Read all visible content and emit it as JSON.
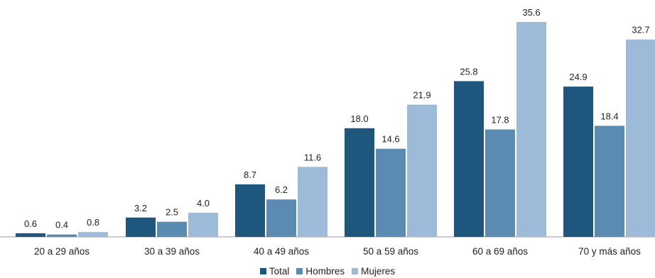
{
  "colors": {
    "total": "#1f567e",
    "hombres": "#5b8bb0",
    "mujeres": "#9dbbd8"
  },
  "chart_data": {
    "type": "bar",
    "title": "",
    "xlabel": "",
    "ylabel": "",
    "ylim": [
      0,
      35.6
    ],
    "grid": false,
    "legend_position": "bottom",
    "categories": [
      "20 a 29 años",
      "30 a 39 años",
      "40 a 49 años",
      "50 a 59 años",
      "60 a 69 años",
      "70 y más años"
    ],
    "series": [
      {
        "name": "Total",
        "values": [
          0.6,
          3.2,
          8.7,
          18.0,
          25.8,
          24.9
        ],
        "labels": [
          "0.6",
          "3.2",
          "8.7",
          "18.0",
          "25.8",
          "24.9"
        ]
      },
      {
        "name": "Hombres",
        "values": [
          0.4,
          2.5,
          6.2,
          14.6,
          17.8,
          18.4
        ],
        "labels": [
          "0.4",
          "2.5",
          "6.2",
          "14.6",
          "17.8",
          "18.4"
        ]
      },
      {
        "name": "Mujeres",
        "values": [
          0.8,
          4.0,
          11.6,
          21.9,
          35.6,
          32.7
        ],
        "labels": [
          "0.8",
          "4.0",
          "11.6",
          "21.9",
          "35.6",
          "32.7"
        ]
      }
    ]
  }
}
